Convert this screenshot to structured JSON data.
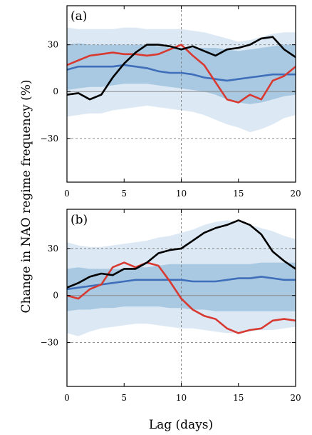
{
  "ylabel": "Change in NAO regime frequency (%)",
  "xlabel": "Lag (days)",
  "colors": {
    "outer_band": "#dce9f5",
    "inner_band": "#a9c9e2",
    "blue_line": "#3f6fba",
    "red_line": "#d83a32",
    "black_line": "#000000",
    "dashed": "#808080",
    "zero_line": "#8a8a8a"
  },
  "chart_data": [
    {
      "type": "line",
      "label": "(a)",
      "xlim": [
        0,
        20
      ],
      "ylim": [
        -58,
        55
      ],
      "xticks": [
        0,
        5,
        10,
        15,
        20
      ],
      "yticks": [
        -30,
        0,
        30
      ],
      "hlines_dashed": [
        30,
        -30
      ],
      "vline_dashed": 10,
      "x": [
        0,
        1,
        2,
        3,
        4,
        5,
        6,
        7,
        8,
        9,
        10,
        11,
        12,
        13,
        14,
        15,
        16,
        17,
        18,
        19,
        20
      ],
      "bands": {
        "outer_upper": [
          41,
          40,
          40,
          40,
          40,
          41,
          41,
          40,
          40,
          40,
          40,
          39,
          38,
          36,
          34,
          32,
          33,
          35,
          37,
          38,
          38
        ],
        "outer_lower": [
          -16,
          -15,
          -14,
          -14,
          -12,
          -11,
          -10,
          -9,
          -10,
          -11,
          -12,
          -13,
          -15,
          -18,
          -21,
          -23,
          -26,
          -24,
          -21,
          -17,
          -15
        ],
        "inner_upper": [
          30,
          31,
          30,
          30,
          30,
          30,
          30,
          30,
          29,
          28,
          28,
          28,
          28,
          28,
          27,
          26,
          27,
          28,
          29,
          30,
          30
        ],
        "inner_lower": [
          1,
          2,
          3,
          3,
          4,
          5,
          5,
          5,
          4,
          3,
          2,
          1,
          0,
          -2,
          -5,
          -7,
          -8,
          -7,
          -5,
          -3,
          -2
        ]
      },
      "series": [
        {
          "values": [
            -2,
            -1,
            -5,
            -2,
            9,
            18,
            25,
            30,
            30,
            29,
            27,
            29,
            26,
            23,
            27,
            28,
            30,
            34,
            35,
            27,
            22
          ]
        },
        {
          "values": [
            17,
            20,
            23,
            24,
            25,
            24,
            24,
            23,
            24,
            27,
            30,
            23,
            17,
            6,
            -5,
            -7,
            -2,
            -5,
            7,
            10,
            16
          ]
        },
        {
          "values": [
            14,
            16,
            16,
            16,
            16,
            17,
            16,
            15,
            13,
            12,
            12,
            11,
            9,
            8,
            7,
            8,
            9,
            10,
            11,
            11,
            11
          ]
        }
      ]
    },
    {
      "type": "line",
      "label": "(b)",
      "xlim": [
        0,
        20
      ],
      "ylim": [
        -58,
        55
      ],
      "xticks": [
        0,
        5,
        10,
        15,
        20
      ],
      "yticks": [
        -30,
        0,
        30
      ],
      "hlines_dashed": [
        30,
        -30
      ],
      "vline_dashed": 10,
      "x": [
        0,
        1,
        2,
        3,
        4,
        5,
        6,
        7,
        8,
        9,
        10,
        11,
        12,
        13,
        14,
        15,
        16,
        17,
        18,
        19,
        20
      ],
      "bands": {
        "outer_upper": [
          34,
          32,
          31,
          31,
          32,
          33,
          34,
          35,
          37,
          38,
          40,
          42,
          45,
          47,
          48,
          47,
          45,
          43,
          41,
          38,
          36
        ],
        "outer_lower": [
          -24,
          -26,
          -23,
          -21,
          -20,
          -19,
          -18,
          -18,
          -19,
          -20,
          -21,
          -21,
          -22,
          -23,
          -24,
          -24,
          -23,
          -22,
          -22,
          -21,
          -20
        ],
        "inner_upper": [
          17,
          18,
          17,
          17,
          17,
          17,
          18,
          18,
          19,
          20,
          20,
          20,
          20,
          20,
          20,
          20,
          20,
          21,
          21,
          21,
          21
        ],
        "inner_lower": [
          -10,
          -9,
          -9,
          -8,
          -8,
          -7,
          -7,
          -7,
          -7,
          -8,
          -8,
          -9,
          -9,
          -10,
          -10,
          -10,
          -10,
          -10,
          -10,
          -10,
          -10
        ]
      },
      "series": [
        {
          "values": [
            5,
            8,
            12,
            14,
            13,
            17,
            17,
            21,
            27,
            29,
            30,
            35,
            40,
            43,
            45,
            48,
            45,
            39,
            28,
            22,
            17
          ]
        },
        {
          "values": [
            0,
            -2,
            4,
            7,
            18,
            21,
            18,
            21,
            19,
            9,
            -2,
            -9,
            -13,
            -15,
            -21,
            -24,
            -22,
            -21,
            -16,
            -15,
            -16
          ]
        },
        {
          "values": [
            4,
            5,
            6,
            7,
            8,
            9,
            10,
            10,
            10,
            10,
            10,
            9,
            9,
            9,
            10,
            11,
            11,
            12,
            11,
            10,
            10
          ]
        }
      ]
    }
  ]
}
